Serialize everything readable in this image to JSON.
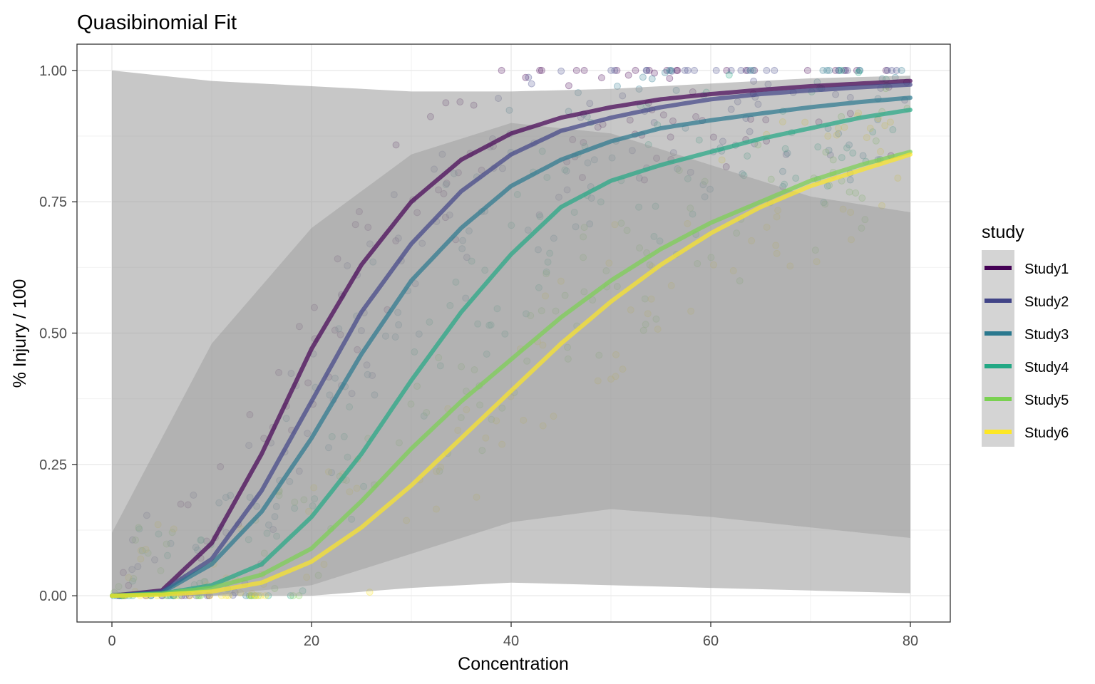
{
  "chart_data": {
    "type": "line",
    "title": "Quasibinomial Fit",
    "xlabel": "Concentration",
    "ylabel": "% Injury / 100",
    "xlim": [
      -3.5,
      84.0
    ],
    "ylim": [
      -0.05,
      1.05
    ],
    "x_ticks": [
      0,
      20,
      40,
      60,
      80
    ],
    "x_tick_labels": [
      "0",
      "20",
      "40",
      "60",
      "80"
    ],
    "y_ticks": [
      0,
      0.25,
      0.5,
      0.75,
      1.0
    ],
    "y_tick_labels": [
      "0.00",
      "0.25",
      "0.50",
      "0.75",
      "1.00"
    ],
    "grid": true,
    "legend": {
      "title": "study",
      "position": "right"
    },
    "x": [
      0,
      5,
      10,
      15,
      20,
      25,
      30,
      35,
      40,
      45,
      50,
      55,
      60,
      65,
      70,
      75,
      80
    ],
    "series": [
      {
        "name": "Study1",
        "color": "#440154",
        "values": [
          0.0,
          0.01,
          0.1,
          0.27,
          0.47,
          0.63,
          0.75,
          0.83,
          0.88,
          0.91,
          0.93,
          0.945,
          0.955,
          0.963,
          0.97,
          0.975,
          0.98
        ]
      },
      {
        "name": "Study2",
        "color": "#414487",
        "values": [
          0.0,
          0.008,
          0.07,
          0.2,
          0.37,
          0.54,
          0.67,
          0.77,
          0.84,
          0.885,
          0.91,
          0.93,
          0.945,
          0.955,
          0.962,
          0.968,
          0.973
        ]
      },
      {
        "name": "Study3",
        "color": "#2A788E",
        "values": [
          0.0,
          0.006,
          0.06,
          0.16,
          0.3,
          0.46,
          0.6,
          0.7,
          0.78,
          0.83,
          0.865,
          0.89,
          0.905,
          0.918,
          0.93,
          0.94,
          0.948
        ]
      },
      {
        "name": "Study4",
        "color": "#22A884",
        "values": [
          0.0,
          0.004,
          0.02,
          0.06,
          0.15,
          0.27,
          0.41,
          0.54,
          0.65,
          0.74,
          0.79,
          0.82,
          0.845,
          0.87,
          0.89,
          0.91,
          0.925
        ]
      },
      {
        "name": "Study5",
        "color": "#7AD151",
        "values": [
          0.0,
          0.004,
          0.015,
          0.04,
          0.09,
          0.18,
          0.28,
          0.37,
          0.45,
          0.53,
          0.6,
          0.66,
          0.71,
          0.75,
          0.79,
          0.82,
          0.845
        ]
      },
      {
        "name": "Study6",
        "color": "#FDE725",
        "values": [
          0.0,
          0.002,
          0.008,
          0.025,
          0.065,
          0.13,
          0.21,
          0.3,
          0.39,
          0.48,
          0.56,
          0.63,
          0.69,
          0.74,
          0.78,
          0.81,
          0.84
        ]
      }
    ],
    "confidence_band": {
      "color": "#999999",
      "x": [
        0,
        10,
        20,
        30,
        40,
        50,
        60,
        70,
        80
      ],
      "lower": [
        0.0,
        0.0,
        0.0,
        0.015,
        0.025,
        0.02,
        0.015,
        0.01,
        0.005
      ],
      "upper": [
        1.0,
        0.98,
        0.97,
        0.96,
        0.96,
        0.965,
        0.975,
        0.985,
        0.99
      ],
      "inner_lower": [
        0.0,
        0.0,
        0.02,
        0.08,
        0.14,
        0.165,
        0.15,
        0.13,
        0.11
      ],
      "inner_upper": [
        0.12,
        0.48,
        0.7,
        0.84,
        0.9,
        0.88,
        0.82,
        0.76,
        0.73
      ]
    }
  }
}
